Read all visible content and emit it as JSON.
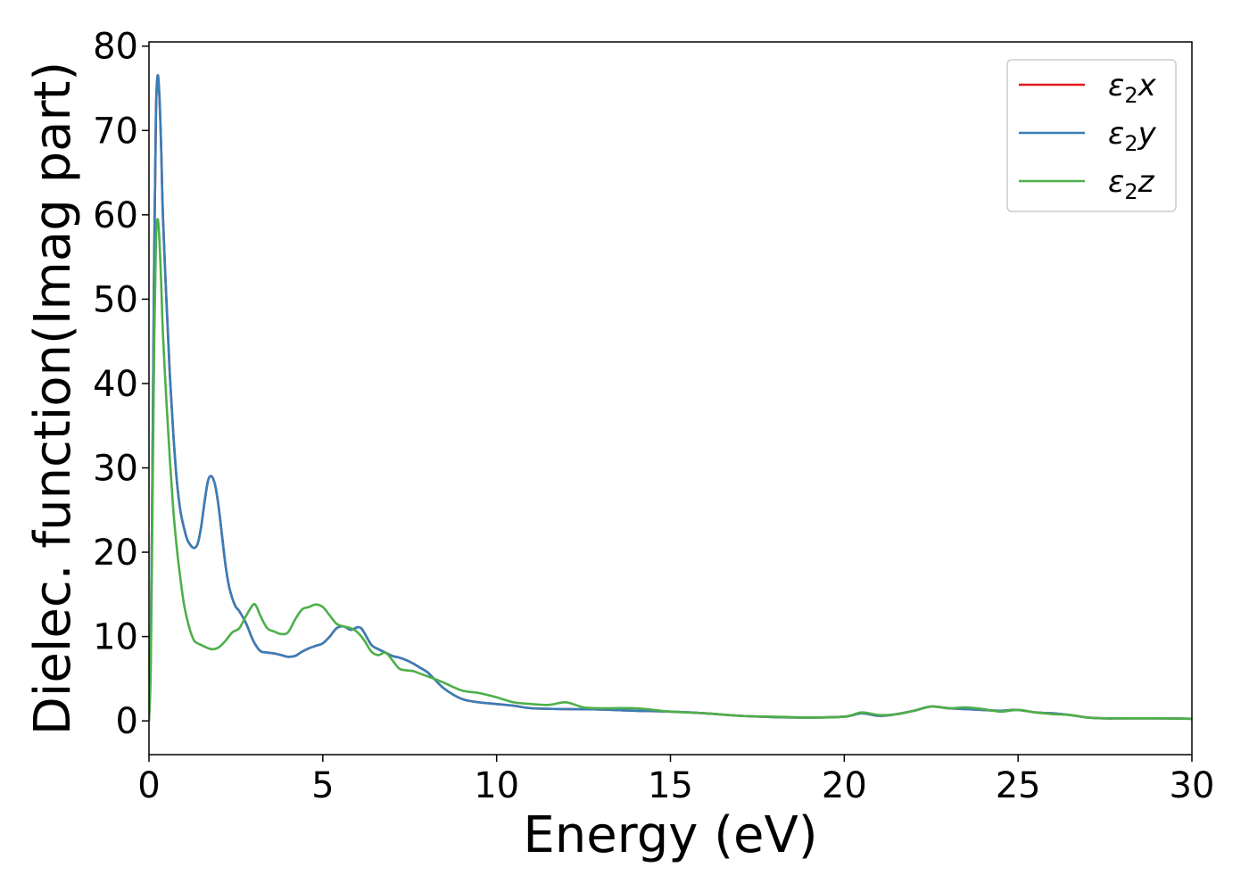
{
  "chart_data": {
    "type": "line",
    "xlabel": "Energy (eV)",
    "ylabel": "Dielec. function(Imag part)",
    "xlim": [
      0,
      30
    ],
    "ylim": [
      -4,
      80.5
    ],
    "xticks": [
      0,
      5,
      10,
      15,
      20,
      25,
      30
    ],
    "yticks": [
      0,
      10,
      20,
      30,
      40,
      50,
      60,
      70,
      80
    ],
    "grid": false,
    "legend_position": "top-right",
    "legend": [
      {
        "base": "ε",
        "sub": "2",
        "axis": "x",
        "color": "#e41a1c"
      },
      {
        "base": "ε",
        "sub": "2",
        "axis": "y",
        "color": "#377eb8"
      },
      {
        "base": "ε",
        "sub": "2",
        "axis": "z",
        "color": "#4daf4a"
      }
    ],
    "series": [
      {
        "name": "ε2x",
        "color": "#e41a1c",
        "x": [
          0,
          0.05,
          0.1,
          0.15,
          0.2,
          0.25,
          0.3,
          0.35,
          0.4,
          0.5,
          0.6,
          0.7,
          0.8,
          0.9,
          1.0,
          1.1,
          1.2,
          1.3,
          1.4,
          1.5,
          1.6,
          1.7,
          1.8,
          1.9,
          2.0,
          2.1,
          2.2,
          2.3,
          2.4,
          2.5,
          2.6,
          2.8,
          3.0,
          3.2,
          3.4,
          3.6,
          3.8,
          4.0,
          4.2,
          4.4,
          4.6,
          4.8,
          5.0,
          5.2,
          5.4,
          5.6,
          5.8,
          6.0,
          6.1,
          6.2,
          6.4,
          6.6,
          6.8,
          7.0,
          7.2,
          7.4,
          7.6,
          7.8,
          8.0,
          8.2,
          8.5,
          9.0,
          9.5,
          10.0,
          10.5,
          11.0,
          12.0,
          13.0,
          14.0,
          15.0,
          16.0,
          17.0,
          18.0,
          19.0,
          20.0,
          20.5,
          21.0,
          21.5,
          22.0,
          22.5,
          23.0,
          23.5,
          24.0,
          24.5,
          25.0,
          25.5,
          26.0,
          26.5,
          27.0,
          27.5,
          28.0,
          29.0,
          30.0
        ],
        "y": [
          0,
          8,
          30,
          55,
          72,
          76.5,
          74,
          68,
          60,
          50,
          41,
          34,
          28.5,
          25,
          23,
          21.5,
          20.8,
          20.5,
          21,
          23,
          26,
          28.5,
          29,
          28,
          25.5,
          22,
          18.5,
          16,
          14.5,
          13.5,
          13,
          11.5,
          9.5,
          8.3,
          8.1,
          8.0,
          7.8,
          7.6,
          7.7,
          8.2,
          8.6,
          8.9,
          9.2,
          10.0,
          11.0,
          11.2,
          10.8,
          11.1,
          11.0,
          10.4,
          9.0,
          8.5,
          8.1,
          7.7,
          7.5,
          7.2,
          6.8,
          6.3,
          5.8,
          5.0,
          3.8,
          2.6,
          2.2,
          2.0,
          1.8,
          1.5,
          1.4,
          1.35,
          1.2,
          1.1,
          0.9,
          0.6,
          0.45,
          0.4,
          0.5,
          0.9,
          0.6,
          0.8,
          1.2,
          1.7,
          1.5,
          1.4,
          1.3,
          1.2,
          1.3,
          1.0,
          0.9,
          0.7,
          0.4,
          0.3,
          0.3,
          0.3,
          0.25
        ]
      },
      {
        "name": "ε2y",
        "color": "#377eb8",
        "x": [
          0,
          0.05,
          0.1,
          0.15,
          0.2,
          0.25,
          0.3,
          0.35,
          0.4,
          0.5,
          0.6,
          0.7,
          0.8,
          0.9,
          1.0,
          1.1,
          1.2,
          1.3,
          1.4,
          1.5,
          1.6,
          1.7,
          1.8,
          1.9,
          2.0,
          2.1,
          2.2,
          2.3,
          2.4,
          2.5,
          2.6,
          2.8,
          3.0,
          3.2,
          3.4,
          3.6,
          3.8,
          4.0,
          4.2,
          4.4,
          4.6,
          4.8,
          5.0,
          5.2,
          5.4,
          5.6,
          5.8,
          6.0,
          6.1,
          6.2,
          6.4,
          6.6,
          6.8,
          7.0,
          7.2,
          7.4,
          7.6,
          7.8,
          8.0,
          8.2,
          8.5,
          9.0,
          9.5,
          10.0,
          10.5,
          11.0,
          12.0,
          13.0,
          14.0,
          15.0,
          16.0,
          17.0,
          18.0,
          19.0,
          20.0,
          20.5,
          21.0,
          21.5,
          22.0,
          22.5,
          23.0,
          23.5,
          24.0,
          24.5,
          25.0,
          25.5,
          26.0,
          26.5,
          27.0,
          27.5,
          28.0,
          29.0,
          30.0
        ],
        "y": [
          0,
          8,
          30,
          55,
          72,
          76.5,
          74,
          68,
          60,
          50,
          41,
          34,
          28.5,
          25,
          23,
          21.5,
          20.8,
          20.5,
          21,
          23,
          26,
          28.5,
          29,
          28,
          25.5,
          22,
          18.5,
          16,
          14.5,
          13.5,
          13,
          11.5,
          9.5,
          8.3,
          8.1,
          8.0,
          7.8,
          7.6,
          7.7,
          8.2,
          8.6,
          8.9,
          9.2,
          10.0,
          11.0,
          11.2,
          10.8,
          11.1,
          11.0,
          10.4,
          9.0,
          8.5,
          8.1,
          7.7,
          7.5,
          7.2,
          6.8,
          6.3,
          5.8,
          5.0,
          3.8,
          2.6,
          2.2,
          2.0,
          1.8,
          1.5,
          1.4,
          1.35,
          1.2,
          1.1,
          0.9,
          0.6,
          0.45,
          0.4,
          0.5,
          0.9,
          0.6,
          0.8,
          1.2,
          1.7,
          1.5,
          1.4,
          1.3,
          1.2,
          1.3,
          1.0,
          0.9,
          0.7,
          0.4,
          0.3,
          0.3,
          0.3,
          0.25
        ]
      },
      {
        "name": "ε2z",
        "color": "#4daf4a",
        "x": [
          0,
          0.05,
          0.1,
          0.15,
          0.2,
          0.25,
          0.3,
          0.35,
          0.4,
          0.5,
          0.6,
          0.7,
          0.8,
          0.9,
          1.0,
          1.1,
          1.2,
          1.3,
          1.4,
          1.5,
          1.6,
          1.8,
          2.0,
          2.2,
          2.4,
          2.6,
          2.8,
          3.0,
          3.1,
          3.2,
          3.4,
          3.6,
          3.8,
          4.0,
          4.2,
          4.4,
          4.6,
          4.8,
          5.0,
          5.2,
          5.4,
          5.6,
          5.8,
          6.0,
          6.2,
          6.4,
          6.6,
          6.8,
          7.0,
          7.2,
          7.4,
          7.6,
          7.8,
          8.0,
          8.2,
          8.5,
          9.0,
          9.5,
          10.0,
          10.5,
          11.0,
          11.5,
          12.0,
          12.5,
          13.0,
          14.0,
          15.0,
          16.0,
          17.0,
          18.0,
          19.0,
          20.0,
          20.5,
          21.0,
          21.5,
          22.0,
          22.5,
          23.0,
          23.5,
          24.0,
          24.5,
          25.0,
          25.5,
          26.0,
          26.5,
          27.0,
          27.5,
          28.0,
          29.0,
          30.0
        ],
        "y": [
          0,
          6,
          25,
          45,
          57,
          59.5,
          57,
          52,
          46,
          38,
          31,
          25,
          20.5,
          17,
          14,
          12,
          10.5,
          9.5,
          9.2,
          9.0,
          8.8,
          8.5,
          8.7,
          9.5,
          10.5,
          11.0,
          12.5,
          13.8,
          13.5,
          12.5,
          11.0,
          10.6,
          10.3,
          10.5,
          12.0,
          13.2,
          13.5,
          13.8,
          13.5,
          12.5,
          11.5,
          11.2,
          11.0,
          10.5,
          9.5,
          8.2,
          7.8,
          8.1,
          7.2,
          6.2,
          6.0,
          5.9,
          5.6,
          5.3,
          5.0,
          4.5,
          3.6,
          3.3,
          2.8,
          2.2,
          2.0,
          1.9,
          2.2,
          1.6,
          1.5,
          1.5,
          1.1,
          0.9,
          0.6,
          0.5,
          0.4,
          0.5,
          1.0,
          0.7,
          0.8,
          1.2,
          1.7,
          1.5,
          1.6,
          1.4,
          1.1,
          1.3,
          1.0,
          0.8,
          0.7,
          0.4,
          0.3,
          0.3,
          0.3,
          0.25
        ]
      }
    ]
  }
}
